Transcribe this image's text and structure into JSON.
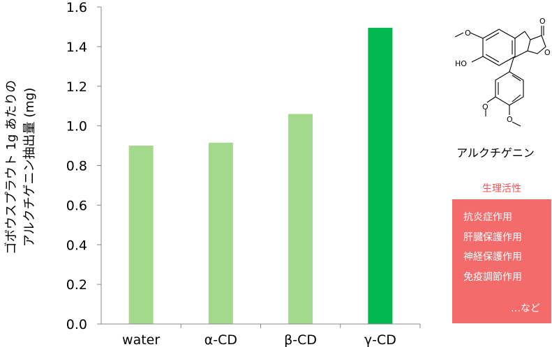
{
  "chart_data": {
    "type": "bar",
    "ylabel_lines": [
      "ゴボウスプラウト 1g あたりの",
      "アルクチゲニン抽出量 (mg)"
    ],
    "categories": [
      "water",
      "α-CD",
      "β-CD",
      "γ-CD"
    ],
    "values": [
      0.9,
      0.915,
      1.06,
      1.495
    ],
    "colors": [
      "#a3d98a",
      "#a3d98a",
      "#a3d98a",
      "#00b84f"
    ],
    "ylim": [
      0,
      1.6
    ],
    "yticks": [
      "0.0",
      "0.2",
      "0.4",
      "0.6",
      "0.8",
      "1.0",
      "1.2",
      "1.4",
      "1.6"
    ],
    "grid": false
  },
  "side_panel": {
    "compound_name": "アルクチゲニン",
    "activity_title": "生理活性",
    "activities": [
      "抗炎症作用",
      "肝臓保護作用",
      "神経保護作用",
      "免疫調節作用"
    ],
    "more": "…など",
    "box_color": "#f46b6b",
    "title_color": "#f25252",
    "molecule_labels": {
      "methoxy": "O",
      "hydroxy": "HO",
      "carbonyl_o": "O",
      "ring_o": "O"
    }
  }
}
